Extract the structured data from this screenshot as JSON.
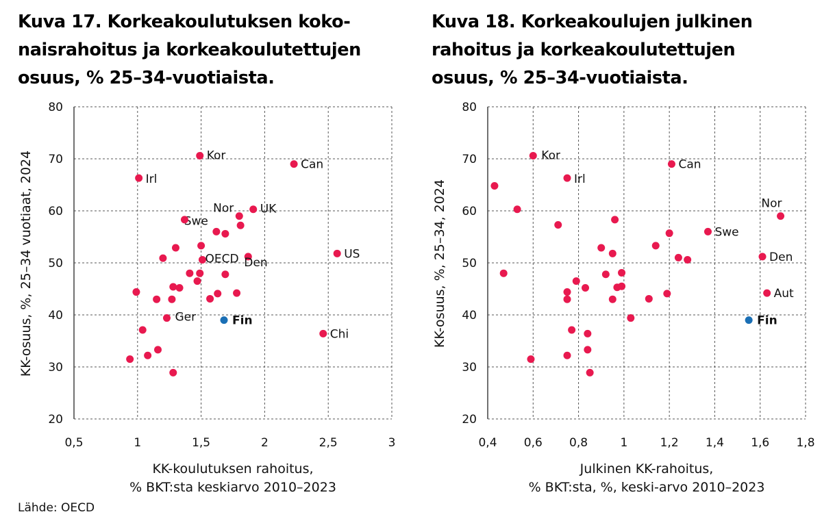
{
  "source": "Lähde: OECD",
  "colors": {
    "point": "#e8194f",
    "highlight": "#1a6fb5",
    "axis": "#333333",
    "grid": "#555555"
  },
  "chart_data": [
    {
      "type": "scatter",
      "title": "Kuva 17. Korkeakoulutuksen kokonaisrahoitus ja korkeakoulutettujen osuus, % 25–34-vuotiaista.",
      "title_lines": [
        "Kuva 17. Korkeakoulutuksen koko-",
        "naisrahoitus ja korkeakoulutettujen",
        "osuus, % 25–34-vuotiaista."
      ],
      "xlabel_lines": [
        "KK-koulutuksen rahoitus,",
        "% BKT:sta keskiarvo 2010–2023"
      ],
      "ylabel": "KK-osuus, %, 25–34 vuotiaat, 2024",
      "xlim": [
        0.5,
        3
      ],
      "ylim": [
        20,
        80
      ],
      "xticks": [
        0.5,
        1,
        1.5,
        2,
        2.5,
        3
      ],
      "xtick_labels": [
        "0,5",
        "1",
        "1,5",
        "2",
        "2,5",
        "3"
      ],
      "yticks": [
        20,
        30,
        40,
        50,
        60,
        70,
        80
      ],
      "ytick_labels": [
        "20",
        "30",
        "40",
        "50",
        "60",
        "70",
        "80"
      ],
      "grid": "dashed-horizontal",
      "points": [
        {
          "x": 1.49,
          "y": 70.6,
          "label": "Kor"
        },
        {
          "x": 2.23,
          "y": 69.0,
          "label": "Can"
        },
        {
          "x": 1.01,
          "y": 66.3,
          "label": "Irl"
        },
        {
          "x": 1.8,
          "y": 59.0,
          "label": "Nor"
        },
        {
          "x": 1.91,
          "y": 60.3,
          "label": "UK"
        },
        {
          "x": 1.62,
          "y": 56.0,
          "label": "Swe"
        },
        {
          "x": 1.51,
          "y": 50.6,
          "label": "OECD"
        },
        {
          "x": 1.87,
          "y": 51.2,
          "label": "Den"
        },
        {
          "x": 2.57,
          "y": 51.8,
          "label": "US"
        },
        {
          "x": 1.23,
          "y": 39.4,
          "label": "Ger"
        },
        {
          "x": 1.68,
          "y": 39.0,
          "label": "Fin",
          "highlight": true
        },
        {
          "x": 2.46,
          "y": 36.4,
          "label": "Chi"
        },
        {
          "x": 1.37,
          "y": 58.3,
          "label": ""
        },
        {
          "x": 1.81,
          "y": 57.2,
          "label": ""
        },
        {
          "x": 1.69,
          "y": 55.6,
          "label": ""
        },
        {
          "x": 1.5,
          "y": 53.3,
          "label": ""
        },
        {
          "x": 1.3,
          "y": 52.9,
          "label": ""
        },
        {
          "x": 1.2,
          "y": 50.9,
          "label": ""
        },
        {
          "x": 1.41,
          "y": 48.0,
          "label": ""
        },
        {
          "x": 1.49,
          "y": 48.0,
          "label": ""
        },
        {
          "x": 1.69,
          "y": 47.8,
          "label": ""
        },
        {
          "x": 1.47,
          "y": 46.5,
          "label": ""
        },
        {
          "x": 1.28,
          "y": 45.4,
          "label": ""
        },
        {
          "x": 1.33,
          "y": 45.2,
          "label": ""
        },
        {
          "x": 0.99,
          "y": 44.4,
          "label": ""
        },
        {
          "x": 1.63,
          "y": 44.1,
          "label": ""
        },
        {
          "x": 1.78,
          "y": 44.2,
          "label": ""
        },
        {
          "x": 1.15,
          "y": 43.0,
          "label": ""
        },
        {
          "x": 1.27,
          "y": 43.0,
          "label": ""
        },
        {
          "x": 1.57,
          "y": 43.1,
          "label": ""
        },
        {
          "x": 1.04,
          "y": 37.1,
          "label": ""
        },
        {
          "x": 1.16,
          "y": 33.3,
          "label": ""
        },
        {
          "x": 1.08,
          "y": 32.2,
          "label": ""
        },
        {
          "x": 0.94,
          "y": 31.5,
          "label": ""
        },
        {
          "x": 1.28,
          "y": 28.9,
          "label": ""
        }
      ]
    },
    {
      "type": "scatter",
      "title": "Kuva 18. Korkeakoulujen julkinen rahoitus ja korkeakoulutettujen osuus, % 25–34-vuotiaista.",
      "title_lines": [
        "Kuva 18. Korkeakoulujen julkinen",
        "rahoitus ja korkeakoulutettujen",
        "osuus, % 25–34-vuotiaista."
      ],
      "xlabel_lines": [
        "Julkinen KK-rahoitus,",
        "% BKT:sta, %, keski-arvo 2010–2023"
      ],
      "ylabel": "KK-osuus, %,  25–34, 2024",
      "xlim": [
        0.4,
        1.8
      ],
      "ylim": [
        20,
        80
      ],
      "xticks": [
        0.4,
        0.6,
        0.8,
        1.0,
        1.2,
        1.4,
        1.6,
        1.8
      ],
      "xtick_labels": [
        "0,4",
        "0,6",
        "0,8",
        "1",
        "1,2",
        "1,4",
        "1,6",
        "1,8"
      ],
      "yticks": [
        20,
        30,
        40,
        50,
        60,
        70,
        80
      ],
      "ytick_labels": [
        "20",
        "30",
        "40",
        "50",
        "60",
        "70",
        "80"
      ],
      "grid": "dashed-horizontal",
      "points": [
        {
          "x": 0.6,
          "y": 70.6,
          "label": "Kor"
        },
        {
          "x": 1.21,
          "y": 69.0,
          "label": "Can"
        },
        {
          "x": 0.75,
          "y": 66.3,
          "label": "Irl"
        },
        {
          "x": 1.69,
          "y": 59.0,
          "label": "Nor"
        },
        {
          "x": 1.37,
          "y": 56.0,
          "label": "Swe"
        },
        {
          "x": 1.61,
          "y": 51.2,
          "label": "Den"
        },
        {
          "x": 1.63,
          "y": 44.2,
          "label": "Aut"
        },
        {
          "x": 1.55,
          "y": 39.0,
          "label": "Fin",
          "highlight": true
        },
        {
          "x": 0.43,
          "y": 64.8,
          "label": ""
        },
        {
          "x": 0.53,
          "y": 60.3,
          "label": ""
        },
        {
          "x": 0.71,
          "y": 57.3,
          "label": ""
        },
        {
          "x": 0.96,
          "y": 58.3,
          "label": ""
        },
        {
          "x": 1.2,
          "y": 55.7,
          "label": ""
        },
        {
          "x": 1.14,
          "y": 53.3,
          "label": ""
        },
        {
          "x": 0.9,
          "y": 52.9,
          "label": ""
        },
        {
          "x": 0.95,
          "y": 51.8,
          "label": ""
        },
        {
          "x": 1.24,
          "y": 51.0,
          "label": ""
        },
        {
          "x": 1.28,
          "y": 50.6,
          "label": ""
        },
        {
          "x": 0.47,
          "y": 48.0,
          "label": ""
        },
        {
          "x": 0.92,
          "y": 47.8,
          "label": ""
        },
        {
          "x": 0.99,
          "y": 48.1,
          "label": ""
        },
        {
          "x": 0.79,
          "y": 46.5,
          "label": ""
        },
        {
          "x": 0.83,
          "y": 45.2,
          "label": ""
        },
        {
          "x": 0.97,
          "y": 45.3,
          "label": ""
        },
        {
          "x": 0.99,
          "y": 45.5,
          "label": ""
        },
        {
          "x": 0.75,
          "y": 44.4,
          "label": ""
        },
        {
          "x": 1.19,
          "y": 44.1,
          "label": ""
        },
        {
          "x": 0.75,
          "y": 43.0,
          "label": ""
        },
        {
          "x": 0.95,
          "y": 43.0,
          "label": ""
        },
        {
          "x": 1.11,
          "y": 43.1,
          "label": ""
        },
        {
          "x": 1.03,
          "y": 39.4,
          "label": ""
        },
        {
          "x": 0.77,
          "y": 37.1,
          "label": ""
        },
        {
          "x": 0.84,
          "y": 36.4,
          "label": ""
        },
        {
          "x": 0.84,
          "y": 33.3,
          "label": ""
        },
        {
          "x": 0.75,
          "y": 32.2,
          "label": ""
        },
        {
          "x": 0.59,
          "y": 31.5,
          "label": ""
        },
        {
          "x": 0.85,
          "y": 28.9,
          "label": ""
        }
      ]
    }
  ]
}
